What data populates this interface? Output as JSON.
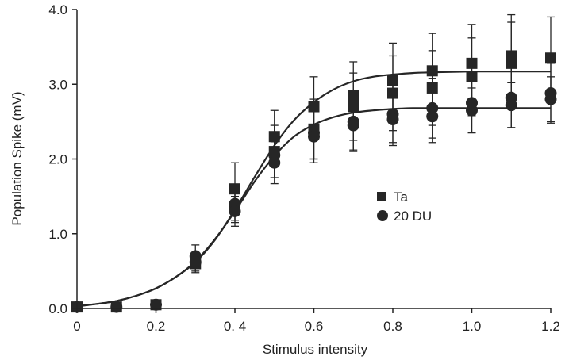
{
  "chart_data": {
    "type": "scatter",
    "title": "",
    "xlabel": "Stimulus intensity",
    "ylabel": "Population Spike (mV)",
    "xlim": [
      0,
      1.2
    ],
    "ylim": [
      0,
      4.0
    ],
    "x_ticks": [
      0,
      0.2,
      0.4,
      0.6,
      0.8,
      1.0,
      1.2
    ],
    "x_tick_labels": [
      "0",
      "0.2",
      "0. 4",
      "0.6",
      "0.8",
      "1.0",
      "1.2"
    ],
    "y_ticks": [
      0,
      1,
      2,
      3,
      4
    ],
    "y_tick_labels": [
      "0.0",
      "1.0",
      "2.0",
      "3.0",
      "4.0"
    ],
    "grid": false,
    "legend_position": "center-right",
    "series": [
      {
        "name": "Ta",
        "marker": "square",
        "color": "#262626",
        "points": [
          {
            "x": 0.0,
            "y": 0.02,
            "err": 0.0
          },
          {
            "x": 0.1,
            "y": 0.02,
            "err": 0.0
          },
          {
            "x": 0.2,
            "y": 0.05,
            "err": 0.02
          },
          {
            "x": 0.3,
            "y": 0.6,
            "err": 0.12
          },
          {
            "x": 0.4,
            "y": 1.6,
            "err": 0.35
          },
          {
            "x": 0.4,
            "y": 1.35,
            "err": 0.2
          },
          {
            "x": 0.5,
            "y": 2.3,
            "err": 0.35
          },
          {
            "x": 0.5,
            "y": 2.1,
            "err": 0.35
          },
          {
            "x": 0.6,
            "y": 2.7,
            "err": 0.4
          },
          {
            "x": 0.6,
            "y": 2.4,
            "err": 0.4
          },
          {
            "x": 0.7,
            "y": 2.85,
            "err": 0.45
          },
          {
            "x": 0.7,
            "y": 2.7,
            "err": 0.45
          },
          {
            "x": 0.8,
            "y": 3.05,
            "err": 0.5
          },
          {
            "x": 0.8,
            "y": 2.88,
            "err": 0.5
          },
          {
            "x": 0.9,
            "y": 3.18,
            "err": 0.5
          },
          {
            "x": 0.9,
            "y": 2.95,
            "err": 0.5
          },
          {
            "x": 1.0,
            "y": 3.28,
            "err": 0.52
          },
          {
            "x": 1.0,
            "y": 3.1,
            "err": 0.52
          },
          {
            "x": 1.1,
            "y": 3.38,
            "err": 0.55
          },
          {
            "x": 1.1,
            "y": 3.28,
            "err": 0.55
          },
          {
            "x": 1.2,
            "y": 3.35,
            "err": 0.55
          }
        ],
        "fit": {
          "x": [
            0,
            0.05,
            0.1,
            0.15,
            0.2,
            0.25,
            0.3,
            0.35,
            0.4,
            0.45,
            0.5,
            0.55,
            0.6,
            0.65,
            0.7,
            0.75,
            0.8,
            0.85,
            0.9,
            1.0,
            1.1,
            1.2
          ],
          "y": [
            0.03,
            0.06,
            0.1,
            0.17,
            0.27,
            0.42,
            0.62,
            0.92,
            1.32,
            1.76,
            2.18,
            2.52,
            2.76,
            2.93,
            3.04,
            3.1,
            3.13,
            3.15,
            3.16,
            3.17,
            3.17,
            3.17
          ]
        }
      },
      {
        "name": "20 DU",
        "marker": "circle",
        "color": "#262626",
        "points": [
          {
            "x": 0.0,
            "y": 0.02,
            "err": 0.0
          },
          {
            "x": 0.1,
            "y": 0.02,
            "err": 0.0
          },
          {
            "x": 0.2,
            "y": 0.05,
            "err": 0.02
          },
          {
            "x": 0.3,
            "y": 0.7,
            "err": 0.15
          },
          {
            "x": 0.3,
            "y": 0.62,
            "err": 0.12
          },
          {
            "x": 0.4,
            "y": 1.4,
            "err": 0.22
          },
          {
            "x": 0.4,
            "y": 1.3,
            "err": 0.2
          },
          {
            "x": 0.5,
            "y": 2.05,
            "err": 0.3
          },
          {
            "x": 0.5,
            "y": 1.95,
            "err": 0.28
          },
          {
            "x": 0.6,
            "y": 2.35,
            "err": 0.35
          },
          {
            "x": 0.6,
            "y": 2.3,
            "err": 0.35
          },
          {
            "x": 0.7,
            "y": 2.5,
            "err": 0.38
          },
          {
            "x": 0.7,
            "y": 2.45,
            "err": 0.35
          },
          {
            "x": 0.8,
            "y": 2.6,
            "err": 0.38
          },
          {
            "x": 0.8,
            "y": 2.53,
            "err": 0.35
          },
          {
            "x": 0.9,
            "y": 2.68,
            "err": 0.4
          },
          {
            "x": 0.9,
            "y": 2.57,
            "err": 0.35
          },
          {
            "x": 1.0,
            "y": 2.75,
            "err": 0.4
          },
          {
            "x": 1.0,
            "y": 2.65,
            "err": 0.3
          },
          {
            "x": 1.1,
            "y": 2.82,
            "err": 0.4
          },
          {
            "x": 1.1,
            "y": 2.72,
            "err": 0.3
          },
          {
            "x": 1.2,
            "y": 2.88,
            "err": 0.4
          },
          {
            "x": 1.2,
            "y": 2.8,
            "err": 0.3
          }
        ],
        "fit": {
          "x": [
            0,
            0.05,
            0.1,
            0.15,
            0.2,
            0.25,
            0.3,
            0.35,
            0.4,
            0.45,
            0.5,
            0.55,
            0.6,
            0.65,
            0.7,
            0.75,
            0.8,
            0.85,
            0.9,
            1.0,
            1.1,
            1.2
          ],
          "y": [
            0.03,
            0.06,
            0.1,
            0.17,
            0.27,
            0.42,
            0.63,
            0.93,
            1.3,
            1.7,
            2.04,
            2.3,
            2.46,
            2.56,
            2.62,
            2.65,
            2.67,
            2.68,
            2.68,
            2.68,
            2.68,
            2.68
          ]
        }
      }
    ]
  }
}
